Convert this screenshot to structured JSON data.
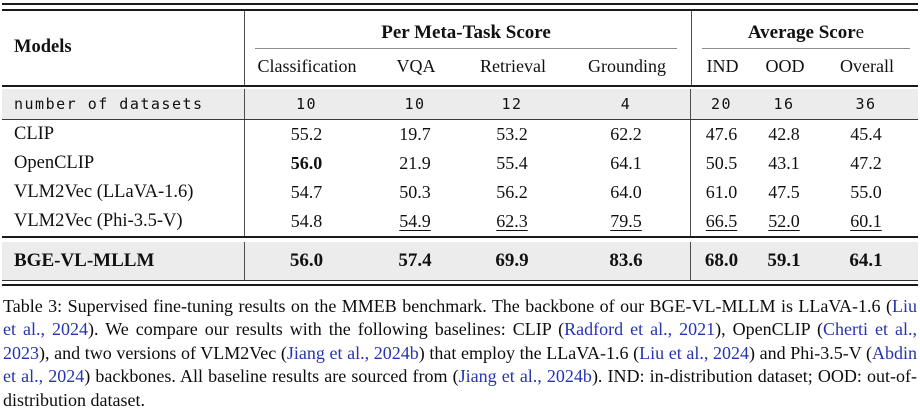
{
  "colors": {
    "citation_blue": "#2434b3",
    "shaded_row_bg": "#ececec",
    "rule_dark": "#1a1a1a",
    "rule_gray": "#8c8c8c"
  },
  "table": {
    "header": {
      "models_label": "Models",
      "group1_label": "Per Meta-Task Score",
      "group2_label_bold": "Average Scor",
      "group2_label_tail": "e",
      "columns": [
        "Classification",
        "VQA",
        "Retrieval",
        "Grounding",
        "IND",
        "OOD",
        "Overall"
      ]
    },
    "datasets_row": {
      "label": "number of datasets",
      "values": [
        "10",
        "10",
        "12",
        "4",
        "20",
        "16",
        "36"
      ]
    },
    "body_rows": [
      {
        "model": "CLIP",
        "cells": [
          {
            "t": "55.2"
          },
          {
            "t": "19.7"
          },
          {
            "t": "53.2"
          },
          {
            "t": "62.2"
          },
          {
            "t": "47.6"
          },
          {
            "t": "42.8"
          },
          {
            "t": "45.4"
          }
        ]
      },
      {
        "model": "OpenCLIP",
        "cells": [
          {
            "t": "56.0",
            "b": true
          },
          {
            "t": "21.9"
          },
          {
            "t": "55.4"
          },
          {
            "t": "64.1"
          },
          {
            "t": "50.5"
          },
          {
            "t": "43.1"
          },
          {
            "t": "47.2"
          }
        ]
      },
      {
        "model": "VLM2Vec (LLaVA-1.6)",
        "cells": [
          {
            "t": "54.7"
          },
          {
            "t": "50.3"
          },
          {
            "t": "56.2"
          },
          {
            "t": "64.0"
          },
          {
            "t": "61.0"
          },
          {
            "t": "47.5"
          },
          {
            "t": "55.0"
          }
        ]
      },
      {
        "model": "VLM2Vec (Phi-3.5-V)",
        "cells": [
          {
            "t": "54.8"
          },
          {
            "t": "54.9",
            "u": true
          },
          {
            "t": "62.3",
            "u": true
          },
          {
            "t": "79.5",
            "u": true
          },
          {
            "t": "66.5",
            "u": true
          },
          {
            "t": "52.0",
            "u": true
          },
          {
            "t": "60.1",
            "u": true
          }
        ]
      }
    ],
    "highlight_row": {
      "model": "BGE-VL-MLLM",
      "cells": [
        {
          "t": "56.0",
          "b": true
        },
        {
          "t": "57.4",
          "b": true
        },
        {
          "t": "69.9",
          "b": true
        },
        {
          "t": "83.6",
          "b": true
        },
        {
          "t": "68.0",
          "b": true
        },
        {
          "t": "59.1",
          "b": true
        },
        {
          "t": "64.1",
          "b": true
        }
      ]
    }
  },
  "caption": {
    "segments": [
      {
        "t": "Table 3: Supervised fine-tuning results on the MMEB benchmark. The backbone of our BGE-VL-MLLM is LLaVA-1.6 (",
        "cite": false
      },
      {
        "t": "Liu et al., 2024",
        "cite": true
      },
      {
        "t": "). We compare our results with the following baselines: CLIP (",
        "cite": false
      },
      {
        "t": "Radford et al., 2021",
        "cite": true
      },
      {
        "t": "), OpenCLIP (",
        "cite": false
      },
      {
        "t": "Cherti et al., 2023",
        "cite": true
      },
      {
        "t": "), and two versions of VLM2Vec (",
        "cite": false
      },
      {
        "t": "Jiang et al., 2024b",
        "cite": true
      },
      {
        "t": ") that employ the LLaVA-1.6 (",
        "cite": false
      },
      {
        "t": "Liu et al., 2024",
        "cite": true
      },
      {
        "t": ") and Phi-3.5-V (",
        "cite": false
      },
      {
        "t": "Abdin et al., 2024",
        "cite": true
      },
      {
        "t": ") backbones. All baseline results are sourced from (",
        "cite": false
      },
      {
        "t": "Jiang et al., 2024b",
        "cite": true
      },
      {
        "t": "). IND: in-distribution dataset; OOD: out-of-distribution dataset.",
        "cite": false
      }
    ]
  }
}
